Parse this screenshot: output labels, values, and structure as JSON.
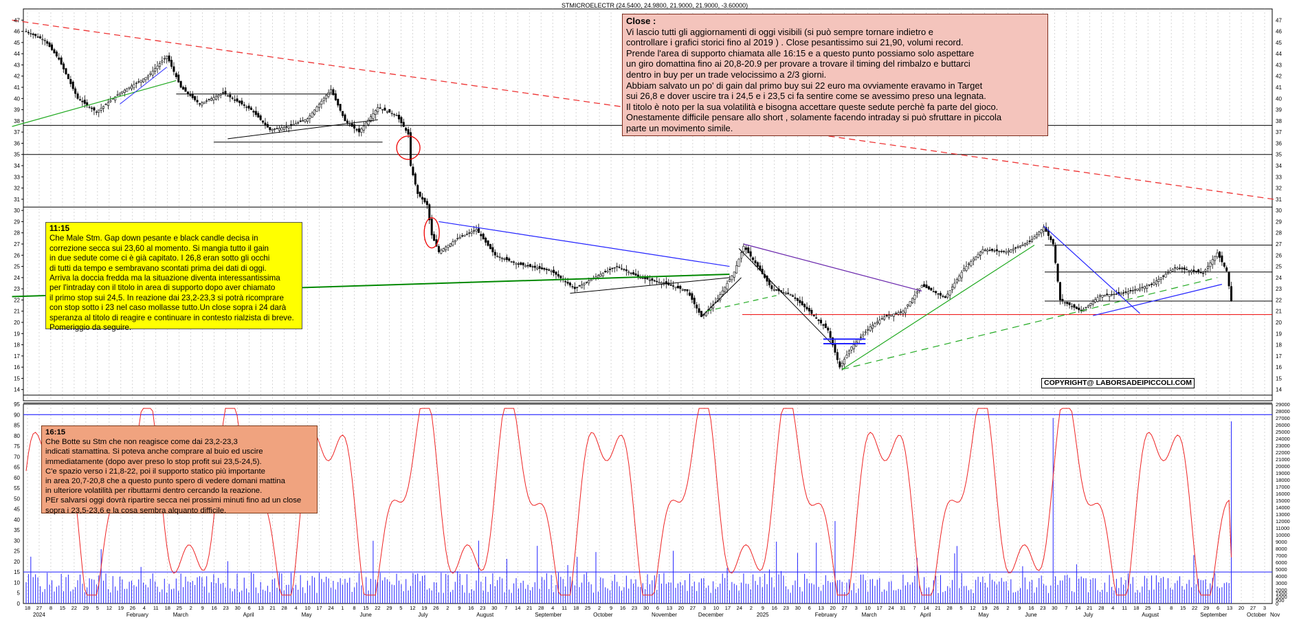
{
  "header": {
    "title": "STMICROELECTR (24.5400, 24.9800, 21.9000, 21.9000, -3.60000)"
  },
  "notes": {
    "close": {
      "title": "Close :",
      "body": "Vi lascio tutti gli aggiornamenti di oggi visibili (si può sempre tornare indietro e\ncontrollare i grafici storici fino al 2019 ) . Close pesantissimo sui 21,90, volumi record.\nPrende l'area di supporto chiamata alle 16:15 e a questo punto possiamo solo aspettare\nun giro domattina fino ai 20,8-20.9 per provare a trovare il timing del rimbalzo e buttarci\ndentro in buy per un trade velocissimo a 2/3 giorni.\nAbbiam salvato un po' di gain dal primo buy sui 22 euro ma ovviamente eravamo in Target\nsui 26,8 e dover uscire tra i 24,5 e i 23,5  ci fa sentire come se avessimo preso una legnata.\nIl titolo è noto per la sua volatilità e bisogna accettare queste sedute perchè fa parte del gioco.\nOnestamente difficile pensare allo short , solamente facendo intraday si può sfruttare in piccola\nparte un movimento simile."
    },
    "n1115": {
      "title": "11:15",
      "body": "Che Male Stm. Gap down pesante e black candle decisa in\ncorrezione secca sui 23,60 al momento. Si mangia tutto il gain\nin due sedute come ci è già capitato. I 26,8 eran sotto gli occhi\ndi tutti da tempo e sembravano scontati prima dei dati di oggi.\nArriva la doccia fredda ma la situazione diventa interessantissima\nper l'intraday con il titolo in area di supporto dopo aver chiamato\nil primo stop sui 24,5. In reazione dai 23,2-23,3 si potrà ricomprare\ncon stop sotto i 23 nel caso mollasse tutto.Un close sopra i 24 darà\nsperanza al titolo di reagire e continuare in contesto rialzista di breve.\nPomeriggio da seguire."
    },
    "n1615": {
      "title": "16:15",
      "body": "Che Botte su Stm che non reagisce come dai 23,2-23,3\nindicati stamattina. Si poteva anche comprare al buio ed uscire\nimmediatamente (dopo aver preso lo stop profit sui 23,5-24,5).\nC'e spazio verso i 21,8-22, poi il supporto statico più importante\nin area 20,7-20,8 che a questo punto spero di vedere domani mattina\nin ulteriore volatilità per ributtarmi dentro cercando la reazione.\nPEr salvarsi oggi dovrà ripartire secca nei prossimi minuti fino ad un close\nsopra i 23,5-23,6 e la cosa sembra alquanto difficile."
    }
  },
  "copyright": "COPYRIGHT@ LABORSADEIPICCOLI.COM",
  "chart_data": {
    "type": "candlestick",
    "price_axis": {
      "min": 13,
      "max": 48,
      "ticks": [
        14,
        15,
        16,
        17,
        18,
        19,
        20,
        21,
        22,
        23,
        24,
        25,
        26,
        27,
        28,
        29,
        30,
        31,
        32,
        33,
        34,
        35,
        36,
        37,
        38,
        39,
        40,
        41,
        42,
        43,
        44,
        45,
        46,
        47
      ]
    },
    "oscillator_axis": {
      "min": 0,
      "max": 95,
      "ticks": [
        0,
        5,
        10,
        15,
        20,
        25,
        30,
        35,
        40,
        45,
        50,
        55,
        60,
        65,
        70,
        75,
        80,
        85,
        90,
        95
      ]
    },
    "volume_axis": {
      "min": 0,
      "max": 29000,
      "ticks": [
        0,
        500,
        1000,
        1500,
        2000,
        3000,
        4000,
        5000,
        6000,
        7000,
        8000,
        9000,
        10000,
        11000,
        12000,
        13000,
        14000,
        15000,
        16000,
        17000,
        18000,
        19000,
        20000,
        21000,
        22000,
        23000,
        24000,
        25000,
        26000,
        27000,
        28000,
        29000
      ]
    },
    "x_ticks": [
      "18",
      "27",
      "8",
      "15",
      "22",
      "29",
      "5",
      "12",
      "19",
      "26",
      "4",
      "11",
      "18",
      "25",
      "2",
      "9",
      "16",
      "23",
      "30",
      "6",
      "13",
      "21",
      "28",
      "4",
      "10",
      "17",
      "24",
      "1",
      "8",
      "15",
      "22",
      "29",
      "5",
      "12",
      "19",
      "26",
      "2",
      "9",
      "16",
      "23",
      "30",
      "7",
      "14",
      "21",
      "28",
      "4",
      "11",
      "18",
      "25",
      "2",
      "9",
      "16",
      "23",
      "30",
      "6",
      "13",
      "20",
      "27",
      "3",
      "10",
      "17",
      "24",
      "2",
      "9",
      "16",
      "23",
      "30",
      "6",
      "13",
      "20",
      "27",
      "3",
      "10",
      "17",
      "24",
      "31",
      "7",
      "14",
      "21",
      "28",
      "5",
      "12",
      "19",
      "26",
      "2",
      "9",
      "16",
      "23",
      "30",
      "7",
      "14",
      "21",
      "28",
      "4",
      "11",
      "18",
      "25",
      "1",
      "8",
      "15",
      "22",
      "29",
      "6",
      "13",
      "20",
      "27",
      "3"
    ],
    "x_months": [
      "2024",
      "February",
      "March",
      "April",
      "May",
      "June",
      "July",
      "August",
      "September",
      "October",
      "November",
      "December",
      "2025",
      "February",
      "March",
      "April",
      "May",
      "June",
      "July",
      "August",
      "September",
      "October",
      "Nov"
    ],
    "price_path": [
      [
        0,
        46.0
      ],
      [
        8,
        45.2
      ],
      [
        14,
        43.5
      ],
      [
        22,
        40.0
      ],
      [
        30,
        38.8
      ],
      [
        40,
        40.5
      ],
      [
        52,
        42.0
      ],
      [
        60,
        43.8
      ],
      [
        66,
        41.0
      ],
      [
        74,
        39.5
      ],
      [
        84,
        40.5
      ],
      [
        96,
        39.0
      ],
      [
        104,
        37.2
      ],
      [
        112,
        37.5
      ],
      [
        120,
        38.2
      ],
      [
        130,
        40.8
      ],
      [
        136,
        38.0
      ],
      [
        142,
        37.0
      ],
      [
        150,
        39.2
      ],
      [
        158,
        38.5
      ],
      [
        163,
        36.8
      ],
      [
        164,
        34.0
      ],
      [
        167,
        31.5
      ],
      [
        171,
        30.5
      ],
      [
        173,
        27.8
      ],
      [
        176,
        26.3
      ],
      [
        184,
        27.5
      ],
      [
        192,
        28.3
      ],
      [
        200,
        26.0
      ],
      [
        210,
        25.2
      ],
      [
        224,
        24.6
      ],
      [
        234,
        23.0
      ],
      [
        244,
        24.2
      ],
      [
        252,
        25.0
      ],
      [
        262,
        24.0
      ],
      [
        272,
        23.5
      ],
      [
        282,
        22.8
      ],
      [
        288,
        20.5
      ],
      [
        294,
        21.8
      ],
      [
        302,
        24.5
      ],
      [
        306,
        26.8
      ],
      [
        312,
        25.0
      ],
      [
        318,
        23.0
      ],
      [
        326,
        22.5
      ],
      [
        334,
        21.0
      ],
      [
        342,
        19.3
      ],
      [
        347,
        16.0
      ],
      [
        352,
        17.8
      ],
      [
        360,
        19.6
      ],
      [
        366,
        20.5
      ],
      [
        374,
        21.0
      ],
      [
        382,
        23.3
      ],
      [
        392,
        22.2
      ],
      [
        400,
        24.8
      ],
      [
        408,
        26.5
      ],
      [
        418,
        26.3
      ],
      [
        428,
        27.2
      ],
      [
        434,
        28.5
      ],
      [
        438,
        27.0
      ],
      [
        441,
        22.0
      ],
      [
        450,
        21.0
      ],
      [
        458,
        22.4
      ],
      [
        468,
        22.6
      ],
      [
        480,
        23.4
      ],
      [
        490,
        24.9
      ],
      [
        502,
        24.4
      ],
      [
        508,
        26.2
      ],
      [
        512,
        24.6
      ],
      [
        514,
        21.9
      ]
    ],
    "horizontal_lines": [
      37.6,
      35.0,
      30.3,
      26.9,
      24.5,
      21.9,
      20.7,
      13.5,
      12.8
    ],
    "osc_levels": [
      90,
      15
    ]
  }
}
